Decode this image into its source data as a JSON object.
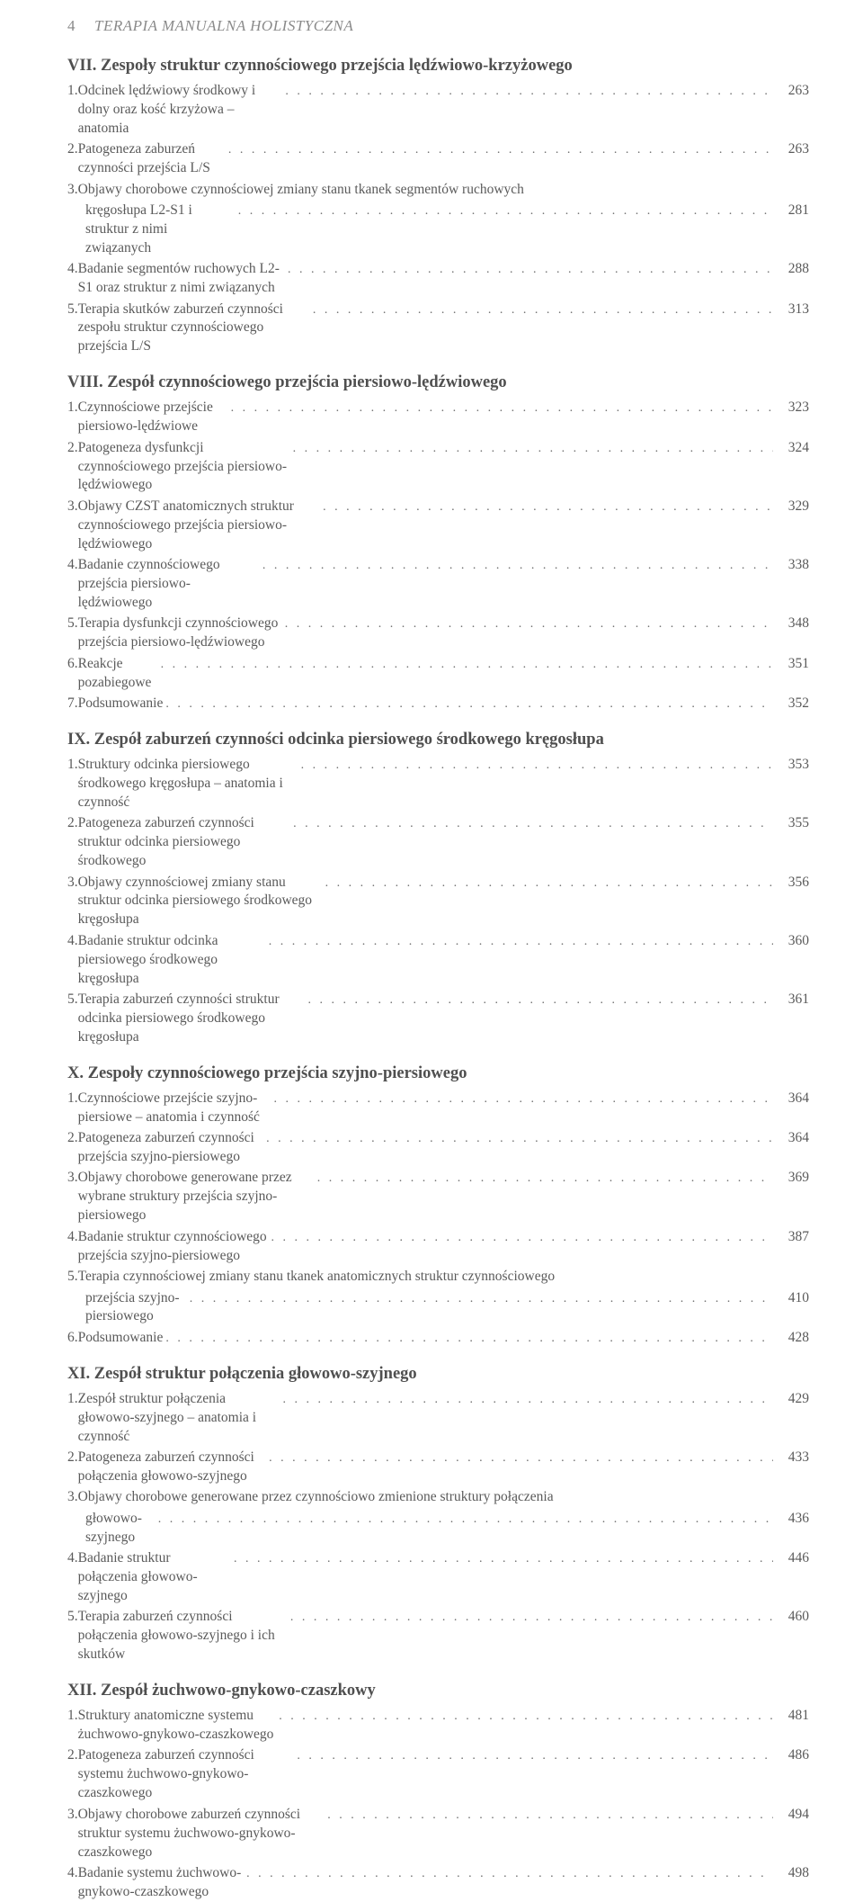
{
  "header": {
    "page_number": "4",
    "running_title": "TERAPIA MANUALNA HOLISTYCZNA"
  },
  "chapters": [
    {
      "num": "VII.",
      "title": "Zespoły struktur czynnościowego przejścia lędźwiowo-krzyżowego",
      "entries": [
        {
          "n": "1.",
          "t": "Odcinek lędźwiowy środkowy i dolny oraz kość krzyżowa – anatomia",
          "p": "263"
        },
        {
          "n": "2.",
          "t": "Patogeneza zaburzeń czynności przejścia L/S",
          "p": "263"
        },
        {
          "n": "3.",
          "t": "Objawy chorobowe czynnościowej zmiany stanu tkanek segmentów ruchowych",
          "t2": "kręgosłupa L2-S1 i struktur z nimi związanych",
          "p": "281"
        },
        {
          "n": "4.",
          "t": "Badanie segmentów ruchowych L2-S1 oraz struktur z nimi związanych",
          "p": "288"
        },
        {
          "n": "5.",
          "t": "Terapia skutków zaburzeń czynności zespołu struktur czynnościowego przejścia L/S",
          "p": "313"
        }
      ]
    },
    {
      "num": "VIII.",
      "title": "Zespół czynnościowego przejścia piersiowo-lędźwiowego",
      "entries": [
        {
          "n": "1.",
          "t": "Czynnościowe przejście piersiowo-lędźwiowe",
          "p": "323"
        },
        {
          "n": "2.",
          "t": "Patogeneza dysfunkcji czynnościowego przejścia piersiowo-lędźwiowego",
          "p": "324"
        },
        {
          "n": "3.",
          "t": "Objawy CZST anatomicznych struktur czynnościowego przejścia piersiowo-lędźwiowego",
          "p": "329"
        },
        {
          "n": "4.",
          "t": "Badanie czynnościowego przejścia piersiowo-lędźwiowego",
          "p": "338"
        },
        {
          "n": "5.",
          "t": "Terapia dysfunkcji czynnościowego przejścia piersiowo-lędźwiowego",
          "p": "348"
        },
        {
          "n": "6.",
          "t": "Reakcje pozabiegowe",
          "p": "351"
        },
        {
          "n": "7.",
          "t": "Podsumowanie",
          "p": "352"
        }
      ]
    },
    {
      "num": "IX.",
      "title": "Zespół zaburzeń czynności odcinka piersiowego środkowego kręgosłupa",
      "entries": [
        {
          "n": "1.",
          "t": "Struktury odcinka piersiowego środkowego kręgosłupa – anatomia i czynność",
          "p": "353"
        },
        {
          "n": "2.",
          "t": "Patogeneza zaburzeń czynności struktur odcinka piersiowego środkowego",
          "p": "355"
        },
        {
          "n": "3.",
          "t": "Objawy czynnościowej zmiany stanu struktur odcinka piersiowego środkowego kręgosłupa",
          "p": "356"
        },
        {
          "n": "4.",
          "t": "Badanie struktur odcinka piersiowego środkowego kręgosłupa",
          "p": "360"
        },
        {
          "n": "5.",
          "t": "Terapia zaburzeń czynności struktur odcinka piersiowego środkowego kręgosłupa",
          "p": "361"
        }
      ]
    },
    {
      "num": "X.",
      "title": "Zespoły czynnościowego przejścia szyjno-piersiowego",
      "entries": [
        {
          "n": "1.",
          "t": "Czynnościowe przejście szyjno-piersiowe – anatomia i czynność",
          "p": "364"
        },
        {
          "n": "2.",
          "t": "Patogeneza zaburzeń czynności przejścia szyjno-piersiowego",
          "p": "364"
        },
        {
          "n": "3.",
          "t": "Objawy chorobowe generowane przez wybrane struktury przejścia szyjno-piersiowego",
          "p": "369"
        },
        {
          "n": "4.",
          "t": "Badanie struktur czynnościowego przejścia szyjno-piersiowego",
          "p": "387"
        },
        {
          "n": "5.",
          "t": "Terapia czynnościowej zmiany stanu tkanek anatomicznych struktur czynnościowego",
          "t2": "przejścia szyjno-piersiowego",
          "p": "410"
        },
        {
          "n": "6.",
          "t": "Podsumowanie",
          "p": "428"
        }
      ]
    },
    {
      "num": "XI.",
      "title": "Zespół struktur połączenia głowowo-szyjnego",
      "entries": [
        {
          "n": "1.",
          "t": "Zespół struktur połączenia głowowo-szyjnego – anatomia i czynność",
          "p": "429"
        },
        {
          "n": "2.",
          "t": "Patogeneza zaburzeń czynności połączenia głowowo-szyjnego",
          "p": "433"
        },
        {
          "n": "3.",
          "t": "Objawy chorobowe generowane przez czynnościowo zmienione struktury połączenia",
          "t2": "głowowo-szyjnego",
          "p": "436"
        },
        {
          "n": "4.",
          "t": "Badanie struktur połączenia głowowo-szyjnego",
          "p": "446"
        },
        {
          "n": "5.",
          "t": "Terapia zaburzeń czynności połączenia głowowo-szyjnego i ich skutków",
          "p": "460"
        }
      ]
    },
    {
      "num": "XII.",
      "title": "Zespół żuchwowo-gnykowo-czaszkowy",
      "entries": [
        {
          "n": "1.",
          "t": "Struktury anatomiczne systemu żuchwowo-gnykowo-czaszkowego",
          "p": "481"
        },
        {
          "n": "2.",
          "t": "Patogeneza zaburzeń czynności systemu żuchwowo-gnykowo-czaszkowego",
          "p": "486"
        },
        {
          "n": "3.",
          "t": "Objawy chorobowe zaburzeń czynności struktur systemu żuchwowo-gnykowo-czaszkowego",
          "p": "494"
        },
        {
          "n": "4.",
          "t": "Badanie systemu żuchwowo-gnykowo-czaszkowego",
          "p": "498"
        }
      ]
    }
  ],
  "style": {
    "background_color": "#ffffff",
    "text_color": "#5a5a5a",
    "header_color": "#8a8a8a",
    "chapter_title_color": "#4f4f4f",
    "body_fontsize": 15.5,
    "chapter_title_fontsize": 18.5,
    "header_fontsize": 17,
    "font_family": "Georgia, Times New Roman, serif"
  }
}
